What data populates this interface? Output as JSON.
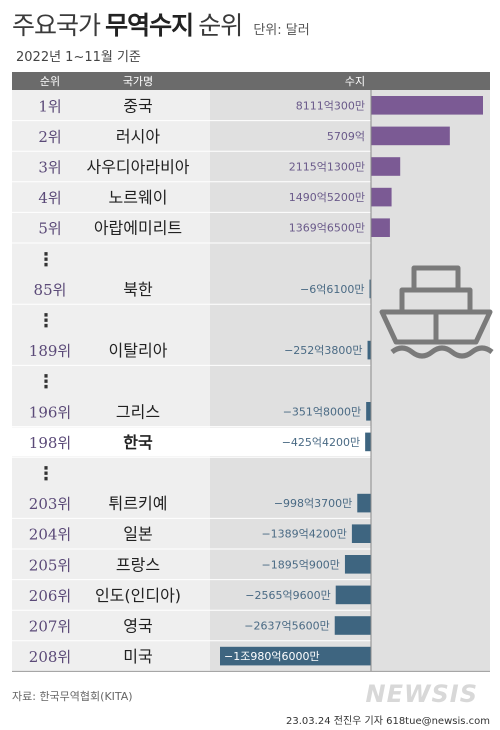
{
  "title": {
    "part1": "주요국가",
    "bold": "무역수지",
    "part2": "순위",
    "unit": "단위: 달러"
  },
  "subtitle": "2022년 1~11월 기준",
  "header": {
    "rank": "순위",
    "country": "국가명",
    "value": "수지"
  },
  "ellipsis": "⋮",
  "source": "자료: 한국무역협회(KITA)",
  "credit": "23.03.24 전진우 기자 618tue@newsis.com",
  "logo": "NEWSIS",
  "colors": {
    "positive": "#7b5a94",
    "negative": "#3e6580",
    "highlight_row": "#ffffff",
    "header": "#6b6b6b",
    "panel": "#e0e0e0"
  },
  "icon": "ship-icon",
  "chart_data": {
    "type": "bar",
    "orientation": "horizontal",
    "unit": "억 달러",
    "rows": [
      {
        "rank": "1위",
        "country": "중국",
        "label": "8111억300만",
        "value": 8111.03
      },
      {
        "rank": "2위",
        "country": "러시아",
        "label": "5709억",
        "value": 5709
      },
      {
        "rank": "3위",
        "country": "사우디아라비아",
        "label": "2115억1300만",
        "value": 2115.13
      },
      {
        "rank": "4위",
        "country": "노르웨이",
        "label": "1490억5200만",
        "value": 1490.52
      },
      {
        "rank": "5위",
        "country": "아랍에미리트",
        "label": "1369억6500만",
        "value": 1369.65
      },
      {
        "gap": true
      },
      {
        "rank": "85위",
        "country": "북한",
        "label": "−6억6100만",
        "value": -6.61
      },
      {
        "gap": true
      },
      {
        "rank": "189위",
        "country": "이탈리아",
        "label": "−252억3800만",
        "value": -252.38
      },
      {
        "gap": true
      },
      {
        "rank": "196위",
        "country": "그리스",
        "label": "−351억8000만",
        "value": -351.8
      },
      {
        "rank": "198위",
        "country": "한국",
        "label": "−425억4200만",
        "value": -425.42,
        "highlight": true
      },
      {
        "gap": true
      },
      {
        "rank": "203위",
        "country": "튀르키예",
        "label": "−998억3700만",
        "value": -998.37
      },
      {
        "rank": "204위",
        "country": "일본",
        "label": "−1389억4200만",
        "value": -1389.42
      },
      {
        "rank": "205위",
        "country": "프랑스",
        "label": "−1895억900만",
        "value": -1895.09
      },
      {
        "rank": "206위",
        "country": "인도(인디아)",
        "label": "−2565억9600만",
        "value": -2565.96
      },
      {
        "rank": "207위",
        "country": "영국",
        "label": "−2637억5600만",
        "value": -2637.56
      },
      {
        "rank": "208위",
        "country": "미국",
        "label": "−1조980억6000만",
        "value": -10980.6
      }
    ]
  }
}
